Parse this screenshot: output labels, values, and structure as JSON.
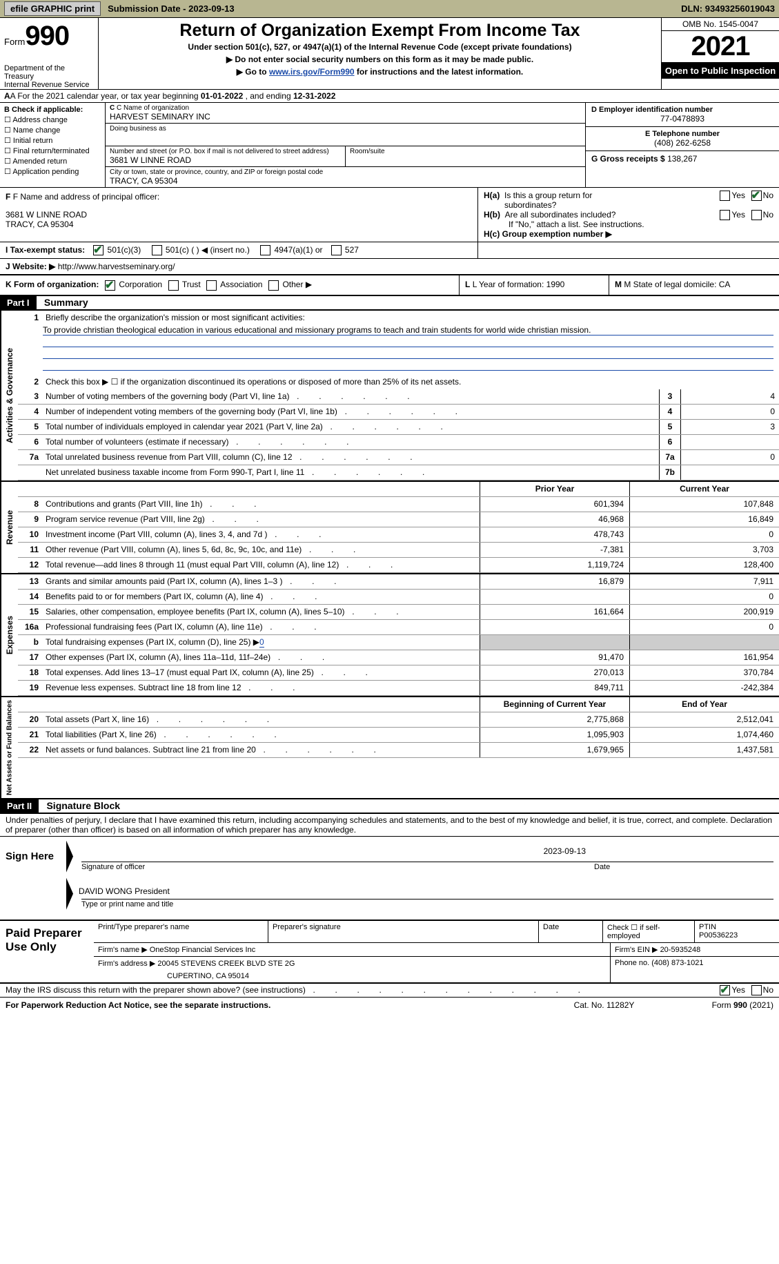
{
  "topbar": {
    "efile_btn": "efile GRAPHIC print",
    "subdate_label": "Submission Date - ",
    "subdate": "2023-09-13",
    "dln_label": "DLN: ",
    "dln": "93493256019043"
  },
  "header": {
    "form_word": "Form",
    "form_num": "990",
    "dept": "Department of the Treasury",
    "irs": "Internal Revenue Service",
    "title": "Return of Organization Exempt From Income Tax",
    "sub": "Under section 501(c), 527, or 4947(a)(1) of the Internal Revenue Code (except private foundations)",
    "note1_pre": "▶ Do not enter social security numbers on this form as it may be made public.",
    "note2_pre": "▶ Go to ",
    "note2_link": "www.irs.gov/Form990",
    "note2_post": " for instructions and the latest information.",
    "omb": "OMB No. 1545-0047",
    "year": "2021",
    "open": "Open to Public Inspection"
  },
  "line_a": {
    "text_pre": "A For the 2021 calendar year, or tax year beginning ",
    "begin": "01-01-2022",
    "mid": "   , and ending ",
    "end": "12-31-2022"
  },
  "section_b": {
    "b_label": "B Check if applicable:",
    "checks": [
      "Address change",
      "Name change",
      "Initial return",
      "Final return/terminated",
      "Amended return",
      "Application pending"
    ],
    "c_label": "C Name of organization",
    "org_name": "HARVEST SEMINARY INC",
    "dba_label": "Doing business as",
    "dba": "",
    "addr_label": "Number and street (or P.O. box if mail is not delivered to street address)",
    "addr": "3681 W LINNE ROAD",
    "room_label": "Room/suite",
    "city_label": "City or town, state or province, country, and ZIP or foreign postal code",
    "city": "TRACY, CA  95304",
    "d_label": "D Employer identification number",
    "ein": "77-0478893",
    "e_label": "E Telephone number",
    "phone": "(408) 262-6258",
    "g_label": "G Gross receipts $ ",
    "gross": "138,267"
  },
  "section_f": {
    "f_label": "F Name and address of principal officer:",
    "officer_addr1": "3681 W LINNE ROAD",
    "officer_addr2": "TRACY, CA  95304",
    "ha_label": "H(a)  Is this a group return for subordinates?",
    "hb_label": "H(b)  Are all subordinates included?",
    "hb_note": "If \"No,\" attach a list. See instructions.",
    "hc_label": "H(c)  Group exemption number ▶",
    "yes": "Yes",
    "no": "No"
  },
  "row_i": {
    "label": "I   Tax-exempt status:",
    "opt1": "501(c)(3)",
    "opt2": "501(c) (   ) ◀ (insert no.)",
    "opt3": "4947(a)(1) or",
    "opt4": "527"
  },
  "row_j": {
    "label": "J   Website: ▶ ",
    "url": "http://www.harvestseminary.org/"
  },
  "row_k": {
    "label": "K Form of organization:",
    "corp": "Corporation",
    "trust": "Trust",
    "assoc": "Association",
    "other": "Other ▶",
    "l_label": "L Year of formation: ",
    "l_val": "1990",
    "m_label": "M State of legal domicile: ",
    "m_val": "CA"
  },
  "part1": {
    "header": "Part I",
    "title": "Summary",
    "line1_label": "Briefly describe the organization's mission or most significant activities:",
    "mission": "To provide christian theological education in various educational and missionary programs to teach and train students for world wide christian mission.",
    "line2": "Check this box ▶ ☐  if the organization discontinued its operations or disposed of more than 25% of its net assets.",
    "side_gov": "Activities & Governance",
    "side_rev": "Revenue",
    "side_exp": "Expenses",
    "side_net": "Net Assets or Fund Balances",
    "col_prior": "Prior Year",
    "col_current": "Current Year",
    "col_begin": "Beginning of Current Year",
    "col_end": "End of Year",
    "rows_gov": [
      {
        "n": "3",
        "d": "Number of voting members of the governing body (Part VI, line 1a)",
        "box": "3",
        "v": "4"
      },
      {
        "n": "4",
        "d": "Number of independent voting members of the governing body (Part VI, line 1b)",
        "box": "4",
        "v": "0"
      },
      {
        "n": "5",
        "d": "Total number of individuals employed in calendar year 2021 (Part V, line 2a)",
        "box": "5",
        "v": "3"
      },
      {
        "n": "6",
        "d": "Total number of volunteers (estimate if necessary)",
        "box": "6",
        "v": ""
      },
      {
        "n": "7a",
        "d": "Total unrelated business revenue from Part VIII, column (C), line 12",
        "box": "7a",
        "v": "0"
      },
      {
        "n": "",
        "d": "Net unrelated business taxable income from Form 990-T, Part I, line 11",
        "box": "7b",
        "v": ""
      }
    ],
    "rows_rev": [
      {
        "n": "8",
        "d": "Contributions and grants (Part VIII, line 1h)",
        "c1": "601,394",
        "c2": "107,848"
      },
      {
        "n": "9",
        "d": "Program service revenue (Part VIII, line 2g)",
        "c1": "46,968",
        "c2": "16,849"
      },
      {
        "n": "10",
        "d": "Investment income (Part VIII, column (A), lines 3, 4, and 7d )",
        "c1": "478,743",
        "c2": "0"
      },
      {
        "n": "11",
        "d": "Other revenue (Part VIII, column (A), lines 5, 6d, 8c, 9c, 10c, and 11e)",
        "c1": "-7,381",
        "c2": "3,703"
      },
      {
        "n": "12",
        "d": "Total revenue—add lines 8 through 11 (must equal Part VIII, column (A), line 12)",
        "c1": "1,119,724",
        "c2": "128,400"
      }
    ],
    "rows_exp": [
      {
        "n": "13",
        "d": "Grants and similar amounts paid (Part IX, column (A), lines 1–3 )",
        "c1": "16,879",
        "c2": "7,911"
      },
      {
        "n": "14",
        "d": "Benefits paid to or for members (Part IX, column (A), line 4)",
        "c1": "",
        "c2": "0"
      },
      {
        "n": "15",
        "d": "Salaries, other compensation, employee benefits (Part IX, column (A), lines 5–10)",
        "c1": "161,664",
        "c2": "200,919"
      },
      {
        "n": "16a",
        "d": "Professional fundraising fees (Part IX, column (A), line 11e)",
        "c1": "",
        "c2": "0"
      },
      {
        "n": "b",
        "d": "Total fundraising expenses (Part IX, column (D), line 25) ▶",
        "fund": "0",
        "grey": true
      },
      {
        "n": "17",
        "d": "Other expenses (Part IX, column (A), lines 11a–11d, 11f–24e)",
        "c1": "91,470",
        "c2": "161,954"
      },
      {
        "n": "18",
        "d": "Total expenses. Add lines 13–17 (must equal Part IX, column (A), line 25)",
        "c1": "270,013",
        "c2": "370,784"
      },
      {
        "n": "19",
        "d": "Revenue less expenses. Subtract line 18 from line 12",
        "c1": "849,711",
        "c2": "-242,384"
      }
    ],
    "rows_net": [
      {
        "n": "20",
        "d": "Total assets (Part X, line 16)",
        "c1": "2,775,868",
        "c2": "2,512,041"
      },
      {
        "n": "21",
        "d": "Total liabilities (Part X, line 26)",
        "c1": "1,095,903",
        "c2": "1,074,460"
      },
      {
        "n": "22",
        "d": "Net assets or fund balances. Subtract line 21 from line 20",
        "c1": "1,679,965",
        "c2": "1,437,581"
      }
    ]
  },
  "part2": {
    "header": "Part II",
    "title": "Signature Block",
    "decl": "Under penalties of perjury, I declare that I have examined this return, including accompanying schedules and statements, and to the best of my knowledge and belief, it is true, correct, and complete. Declaration of preparer (other than officer) is based on all information of which preparer has any knowledge.",
    "sign_here": "Sign Here",
    "sig_officer_label": "Signature of officer",
    "date_label": "Date",
    "sig_date": "2023-09-13",
    "name_title": "DAVID WONG President",
    "name_title_label": "Type or print name and title",
    "paid_prep": "Paid Preparer Use Only",
    "prep_name_label": "Print/Type preparer's name",
    "prep_name": "",
    "prep_sig_label": "Preparer's signature",
    "prep_date_label": "Date",
    "check_self": "Check ☐ if self-employed",
    "ptin_label": "PTIN",
    "ptin": "P00536223",
    "firm_name_label": "Firm's name     ▶ ",
    "firm_name": "OneStop Financial Services Inc",
    "firm_ein_label": "Firm's EIN ▶ ",
    "firm_ein": "20-5935248",
    "firm_addr_label": "Firm's address ▶ ",
    "firm_addr1": "20045 STEVENS CREEK BLVD STE 2G",
    "firm_addr2": "CUPERTINO, CA  95014",
    "firm_phone_label": "Phone no. ",
    "firm_phone": "(408) 873-1021",
    "may_discuss": "May the IRS discuss this return with the preparer shown above? (see instructions)",
    "yes": "Yes",
    "no": "No"
  },
  "footer": {
    "paperwork": "For Paperwork Reduction Act Notice, see the separate instructions.",
    "cat": "Cat. No. 11282Y",
    "form": "Form 990 (2021)"
  }
}
